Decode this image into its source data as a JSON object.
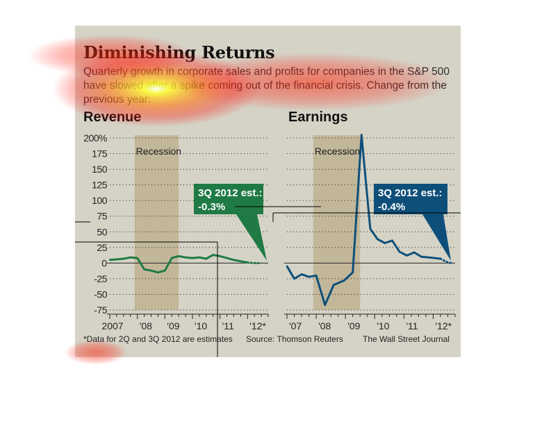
{
  "title": "Diminishing Returns",
  "subtitle": "Quarterly growth in corporate sales and profits for companies in the S&P 500 have slowed after a spike coming out of the financial crisis. Change from the previous year:",
  "footnote": "*Data for 2Q and 3Q 2012 are estimates",
  "source": "Source: Thomson Reuters",
  "credit": "The Wall Street Journal",
  "recession_label": "Recession",
  "chart_data": [
    {
      "type": "line",
      "title": "Revenue",
      "ylim": [
        -75,
        200
      ],
      "y_ticks": [
        200,
        175,
        150,
        125,
        100,
        75,
        50,
        25,
        0,
        -25,
        -50,
        -75
      ],
      "y_tick_labels": [
        "200%",
        "175",
        "150",
        "125",
        "100",
        "75",
        "50",
        "25",
        "0",
        "-25",
        "-50",
        "-75"
      ],
      "x_ticks": [
        2007,
        2008,
        2009,
        2010,
        2011,
        2012
      ],
      "x_tick_labels": [
        "2007",
        "'08",
        "'09",
        "'10",
        "'11",
        "'12*"
      ],
      "xlim": [
        2007,
        2012.75
      ],
      "recession": [
        2007.9,
        2009.5
      ],
      "color": "#1f7a45",
      "series": [
        {
          "x": [
            2007.0,
            2007.25,
            2007.5,
            2007.75,
            2008.0,
            2008.25,
            2008.5,
            2008.75,
            2009.0,
            2009.25,
            2009.5,
            2009.75,
            2010.0,
            2010.25,
            2010.5,
            2010.75,
            2011.0,
            2011.25,
            2011.5,
            2011.75,
            2012.0
          ],
          "y": [
            5,
            6,
            7,
            9,
            8,
            -10,
            -12,
            -15,
            -12,
            8,
            11,
            9,
            8,
            9,
            7,
            13,
            11,
            8,
            5,
            3,
            1
          ]
        },
        {
          "estimate": true,
          "x": [
            2012.0,
            2012.25,
            2012.5
          ],
          "y": [
            1,
            0,
            -0.3
          ]
        }
      ],
      "callout": {
        "label": "3Q 2012 est.:",
        "value": "-0.3%"
      }
    },
    {
      "type": "line",
      "title": "Earnings",
      "ylim": [
        -75,
        200
      ],
      "x_ticks": [
        2007,
        2008,
        2009,
        2010,
        2011,
        2012
      ],
      "x_tick_labels": [
        "'07",
        "'08",
        "'09",
        "'10",
        "'11",
        "'12*"
      ],
      "xlim": [
        2007,
        2012.75
      ],
      "recession": [
        2007.9,
        2009.5
      ],
      "color": "#0e4f7a",
      "series": [
        {
          "x": [
            2007.0,
            2007.25,
            2007.5,
            2007.75,
            2008.0,
            2008.25,
            2008.5,
            2008.75,
            2009.0,
            2009.25,
            2009.5,
            2009.75,
            2010.0,
            2010.25,
            2010.5,
            2010.75,
            2011.0,
            2011.25,
            2011.5,
            2011.75,
            2012.0
          ],
          "y": [
            -5,
            -25,
            -18,
            -22,
            -20,
            -67,
            -35,
            -28,
            -15,
            205,
            55,
            38,
            32,
            36,
            18,
            12,
            17,
            10,
            9,
            8,
            7
          ],
          "plot_x": [
            2007.0,
            2007.25,
            2007.5,
            2007.75,
            2008.0,
            2008.3,
            2008.6,
            2008.95,
            2009.25,
            2009.55,
            2009.85,
            2010.1,
            2010.35,
            2010.6,
            2010.85,
            2011.1,
            2011.35,
            2011.6,
            2011.85,
            2012.05,
            2012.25
          ]
        },
        {
          "estimate": true,
          "x": [
            2012.25,
            2012.45,
            2012.65
          ],
          "y": [
            7,
            2,
            -0.4
          ]
        }
      ],
      "callout": {
        "label": "3Q 2012 est.:",
        "value": "-0.4%"
      }
    }
  ]
}
